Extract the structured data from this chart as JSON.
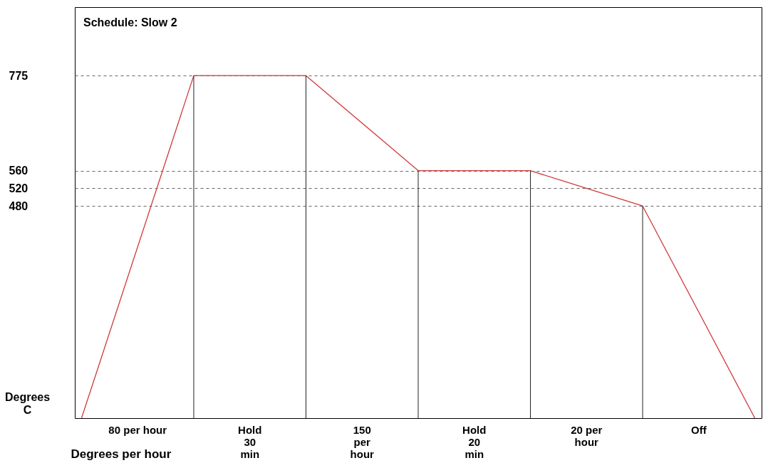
{
  "chart_data": {
    "type": "line",
    "title": "Schedule: Slow 2",
    "xlabel": "Degrees per hour",
    "ylabel": "Degrees C",
    "categories": [
      null,
      null,
      null,
      null,
      null,
      null,
      null
    ],
    "series": [
      {
        "color": "#d0393b",
        "values": [
          0,
          775,
          775,
          560,
          560,
          480,
          0
        ]
      }
    ],
    "ylim": [
      0,
      930
    ],
    "yticks": [
      480,
      520,
      560,
      775
    ],
    "grid": "y",
    "tick_labels": "y",
    "marker": "none",
    "line_style": "solid",
    "annotations": [
      "80 per hour",
      "Hold\n30\nmin",
      "150\nper\nhour",
      "Hold\n20\nmin",
      "20  per\nhour",
      "Off"
    ]
  }
}
